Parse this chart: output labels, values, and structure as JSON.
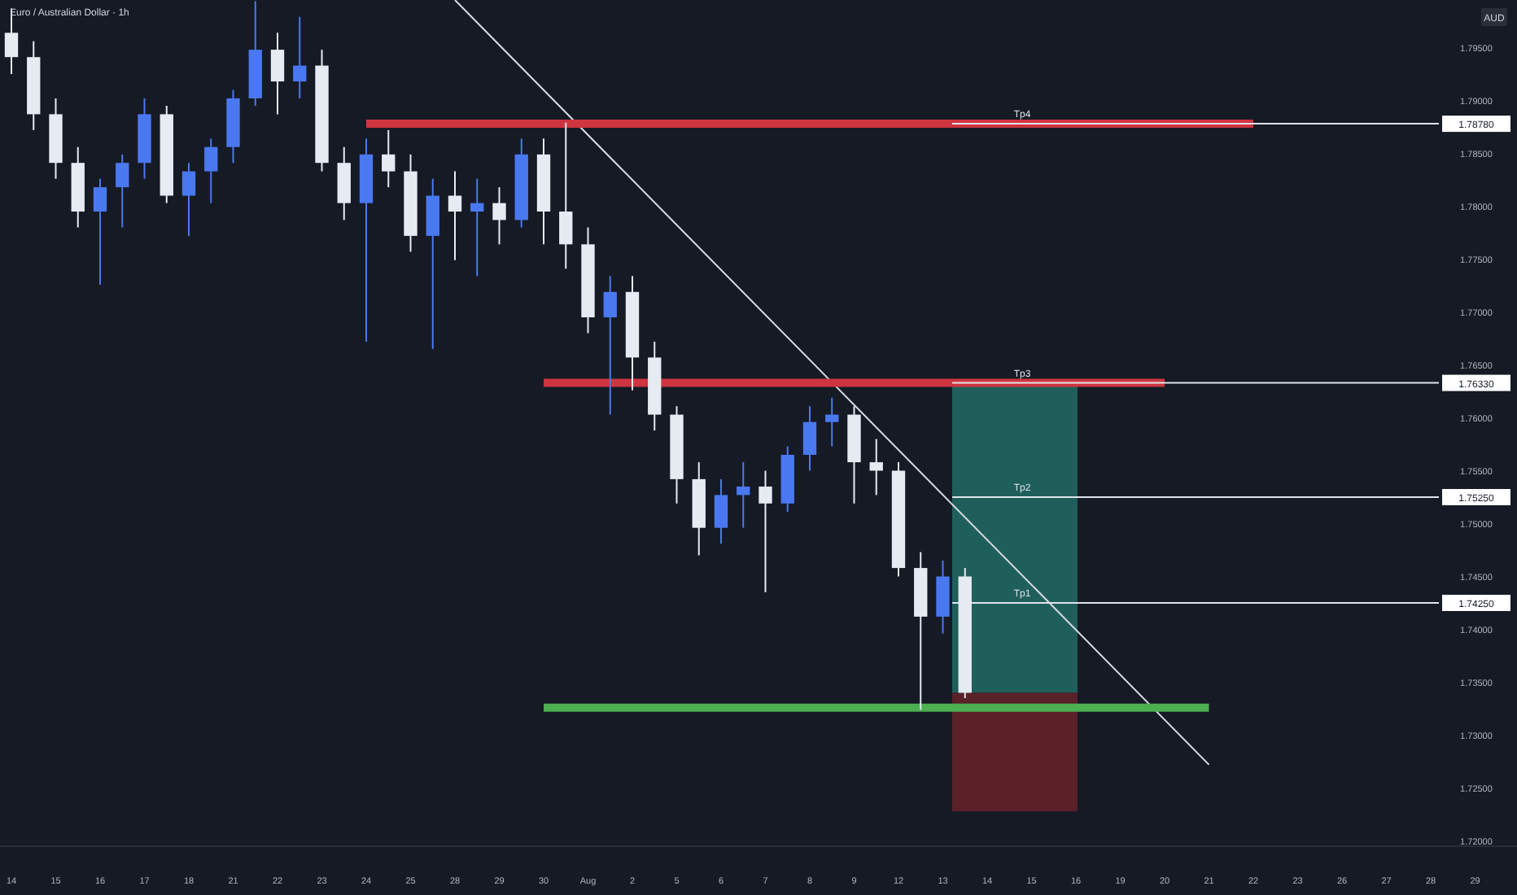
{
  "chart_data": {
    "type": "candlestick",
    "title": "Euro / Australian Dollar · 1h",
    "annotations": [
      "AUD",
      "1.78780",
      "1.76330",
      "1.75250",
      "1.74250"
    ],
    "categories": [
      "14",
      null,
      "15",
      null,
      "16",
      null,
      "17",
      null,
      "18",
      null,
      "21",
      null,
      "22",
      null,
      "23",
      null,
      "24",
      null,
      "25",
      null,
      "28",
      null,
      "29",
      null,
      "30",
      null,
      "Aug",
      null,
      "2",
      null,
      "5",
      null,
      "6",
      null,
      "7",
      null,
      "8",
      null,
      "9",
      null,
      "12",
      null,
      "13",
      null,
      "14",
      null,
      "15",
      null,
      "16",
      null,
      "19",
      null,
      "20",
      null,
      "21",
      null,
      "22",
      null,
      "23",
      null,
      "26",
      null,
      "27",
      null,
      "28",
      null,
      "29",
      null
    ],
    "colors": [
      "#e6eaf2",
      "#e6eaf2",
      "#e6eaf2",
      "#e6eaf2",
      "#4a78f0",
      "#4a78f0",
      "#4a78f0",
      "#e6eaf2",
      "#4a78f0",
      "#4a78f0",
      "#4a78f0",
      "#4a78f0",
      "#e6eaf2",
      "#4a78f0",
      "#e6eaf2",
      "#e6eaf2",
      "#4a78f0",
      "#e6eaf2",
      "#e6eaf2",
      "#4a78f0",
      "#e6eaf2",
      "#4a78f0",
      "#e6eaf2",
      "#4a78f0",
      "#e6eaf2",
      "#e6eaf2",
      "#e6eaf2",
      "#4a78f0",
      "#e6eaf2",
      "#e6eaf2",
      "#e6eaf2",
      "#e6eaf2",
      "#4a78f0",
      "#4a78f0",
      "#e6eaf2",
      "#4a78f0",
      "#4a78f0",
      "#4a78f0",
      "#e6eaf2",
      "#e6eaf2",
      "#e6eaf2",
      "#e6eaf2",
      "#4a78f0",
      "#e6eaf2",
      null,
      null,
      null,
      null,
      null,
      null,
      null,
      null,
      null,
      null,
      null,
      null,
      null,
      null,
      null,
      null,
      null,
      null,
      null,
      null,
      null,
      null,
      null,
      null
    ],
    "ohlc": [
      [
        1.7964,
        1.7987,
        1.7925,
        1.7941
      ],
      [
        1.7941,
        1.7956,
        1.7872,
        1.7887
      ],
      [
        1.7887,
        1.7902,
        1.7826,
        1.7841
      ],
      [
        1.7841,
        1.7856,
        1.778,
        1.7795
      ],
      [
        1.7795,
        1.7826,
        1.7726,
        1.7818
      ],
      [
        1.7818,
        1.7849,
        1.778,
        1.7841
      ],
      [
        1.7841,
        1.7902,
        1.7826,
        1.7887
      ],
      [
        1.7887,
        1.7895,
        1.7803,
        1.781
      ],
      [
        1.781,
        1.7841,
        1.7772,
        1.7833
      ],
      [
        1.7833,
        1.7864,
        1.7803,
        1.7856
      ],
      [
        1.7856,
        1.791,
        1.7841,
        1.7902
      ],
      [
        1.7902,
        1.7994,
        1.7895,
        1.7948
      ],
      [
        1.7948,
        1.7964,
        1.7887,
        1.7918
      ],
      [
        1.7918,
        1.7979,
        1.7902,
        1.7933
      ],
      [
        1.7933,
        1.7948,
        1.7833,
        1.7841
      ],
      [
        1.7841,
        1.7856,
        1.7787,
        1.7803
      ],
      [
        1.7803,
        1.7864,
        1.7672,
        1.7849
      ],
      [
        1.7849,
        1.7872,
        1.7818,
        1.7833
      ],
      [
        1.7833,
        1.7849,
        1.7757,
        1.7772
      ],
      [
        1.7772,
        1.7826,
        1.7665,
        1.781
      ],
      [
        1.781,
        1.7833,
        1.7749,
        1.7795
      ],
      [
        1.7795,
        1.7826,
        1.7734,
        1.7803
      ],
      [
        1.7803,
        1.7818,
        1.7764,
        1.7787
      ],
      [
        1.7787,
        1.7864,
        1.778,
        1.7849
      ],
      [
        1.7849,
        1.7864,
        1.7764,
        1.7795
      ],
      [
        1.7795,
        1.7879,
        1.7741,
        1.7764
      ],
      [
        1.7764,
        1.778,
        1.768,
        1.7695
      ],
      [
        1.7695,
        1.7734,
        1.7603,
        1.7719
      ],
      [
        1.7719,
        1.7734,
        1.7626,
        1.7657
      ],
      [
        1.7657,
        1.7672,
        1.7588,
        1.7603
      ],
      [
        1.7603,
        1.7611,
        1.7519,
        1.7542
      ],
      [
        1.7542,
        1.7558,
        1.747,
        1.7496
      ],
      [
        1.7496,
        1.7542,
        1.7481,
        1.7527
      ],
      [
        1.7527,
        1.7558,
        1.7496,
        1.7535
      ],
      [
        1.7535,
        1.755,
        1.7435,
        1.7519
      ],
      [
        1.7519,
        1.7573,
        1.7511,
        1.7565
      ],
      [
        1.7565,
        1.7611,
        1.755,
        1.7596
      ],
      [
        1.7596,
        1.7619,
        1.7573,
        1.7603
      ],
      [
        1.7603,
        1.7611,
        1.7519,
        1.7558
      ],
      [
        1.7558,
        1.758,
        1.7527,
        1.755
      ],
      [
        1.755,
        1.7558,
        1.745,
        1.7458
      ],
      [
        1.7458,
        1.7473,
        1.7324,
        1.7412
      ],
      [
        1.7412,
        1.7465,
        1.7396,
        1.745
      ],
      [
        1.745,
        1.7458,
        1.7335,
        1.734
      ],
      null,
      null,
      null,
      null,
      null,
      null,
      null,
      null,
      null,
      null,
      null,
      null,
      null,
      null,
      null,
      null,
      null,
      null,
      null,
      null,
      null,
      null,
      null,
      null
    ],
    "series": [
      {
        "type": "line",
        "color": "#d9dce3",
        "values": [
          null,
          null,
          null,
          null,
          null,
          null,
          null,
          null,
          null,
          null,
          null,
          null,
          null,
          null,
          null,
          null,
          null,
          null,
          null,
          null,
          1.7995,
          null,
          null,
          null,
          null,
          null,
          null,
          null,
          null,
          null,
          null,
          null,
          null,
          null,
          null,
          null,
          null,
          null,
          null,
          null,
          null,
          null,
          null,
          null,
          null,
          null,
          null,
          null,
          null,
          null,
          null,
          null,
          null,
          null,
          1.7272,
          null,
          null,
          null,
          null,
          null,
          null,
          null,
          null,
          null,
          null,
          null,
          null,
          null
        ]
      },
      {
        "type": "line",
        "color": "#d0343f",
        "values": [
          null,
          null,
          null,
          null,
          null,
          null,
          null,
          null,
          null,
          null,
          null,
          null,
          null,
          null,
          null,
          null,
          1.7878,
          null,
          null,
          null,
          null,
          null,
          null,
          null,
          null,
          null,
          null,
          null,
          null,
          null,
          null,
          null,
          null,
          null,
          null,
          null,
          null,
          null,
          null,
          null,
          null,
          null,
          null,
          null,
          null,
          null,
          null,
          null,
          null,
          null,
          null,
          null,
          null,
          null,
          null,
          null,
          1.7878,
          null,
          null,
          null,
          null,
          null,
          null,
          null,
          null,
          null,
          null,
          null
        ]
      },
      {
        "type": "line",
        "color": "#d0343f",
        "values": [
          null,
          null,
          null,
          null,
          null,
          null,
          null,
          null,
          null,
          null,
          null,
          null,
          null,
          null,
          null,
          null,
          null,
          null,
          null,
          null,
          null,
          null,
          null,
          null,
          1.7633,
          null,
          null,
          null,
          null,
          null,
          null,
          null,
          null,
          null,
          null,
          null,
          null,
          null,
          null,
          null,
          null,
          null,
          null,
          null,
          null,
          null,
          null,
          null,
          null,
          null,
          null,
          null,
          1.7633,
          null,
          null,
          null,
          null,
          null,
          null,
          null,
          null,
          null,
          null,
          null,
          null,
          null,
          null,
          null
        ]
      },
      {
        "type": "line",
        "color": "#4caf50",
        "values": [
          null,
          null,
          null,
          null,
          null,
          null,
          null,
          null,
          null,
          null,
          null,
          null,
          null,
          null,
          null,
          null,
          null,
          null,
          null,
          null,
          null,
          null,
          null,
          null,
          1.7326,
          null,
          null,
          null,
          null,
          null,
          null,
          null,
          null,
          null,
          null,
          null,
          null,
          null,
          null,
          null,
          null,
          null,
          null,
          null,
          null,
          null,
          null,
          null,
          null,
          null,
          null,
          null,
          null,
          null,
          1.7326,
          null,
          null,
          null,
          null,
          null,
          null,
          null,
          null,
          null,
          null,
          null,
          null,
          null
        ]
      }
    ],
    "bands": [
      {
        "axis": "y",
        "from": 1.734,
        "to": 1.7633,
        "color": "#1f5f5b"
      },
      {
        "axis": "y",
        "from": 1.7228,
        "to": 1.734,
        "color": "#5a2128"
      }
    ],
    "ref_lines": [
      {
        "axis": "y",
        "value": 1.7878,
        "label": "Tp4",
        "color": "#e0e3ea"
      },
      {
        "axis": "y",
        "value": 1.7633,
        "label": "Tp3",
        "color": "#e0e3ea"
      },
      {
        "axis": "y",
        "value": 1.7525,
        "label": "Tp2",
        "color": "#e0e3ea"
      },
      {
        "axis": "y",
        "value": 1.7425,
        "label": "Tp1",
        "color": "#e0e3ea"
      }
    ],
    "ylim": [
      1.7195,
      1.7995
    ],
    "yticks": [
      {
        "value": 1.72,
        "label": "1.72000"
      },
      {
        "value": 1.725,
        "label": "1.72500"
      },
      {
        "value": 1.73,
        "label": "1.73000"
      },
      {
        "value": 1.735,
        "label": "1.73500"
      },
      {
        "value": 1.74,
        "label": "1.74000"
      },
      {
        "value": 1.745,
        "label": "1.74500"
      },
      {
        "value": 1.75,
        "label": "1.75000"
      },
      {
        "value": 1.755,
        "label": "1.75500"
      },
      {
        "value": 1.76,
        "label": "1.76000"
      },
      {
        "value": 1.765,
        "label": "1.76500"
      },
      {
        "value": 1.77,
        "label": "1.77000"
      },
      {
        "value": 1.775,
        "label": "1.77500"
      },
      {
        "value": 1.78,
        "label": "1.78000"
      },
      {
        "value": 1.785,
        "label": "1.78500"
      },
      {
        "value": 1.79,
        "label": "1.79000"
      },
      {
        "value": 1.795,
        "label": "1.79500"
      }
    ],
    "grid": false
  }
}
